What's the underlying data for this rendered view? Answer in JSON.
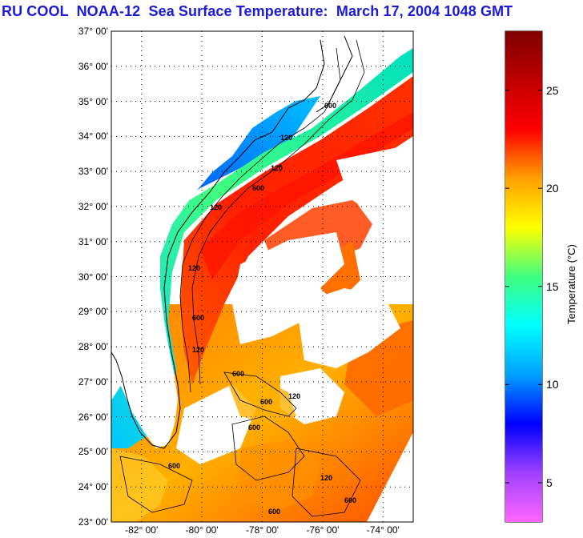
{
  "title": "RU COOL  NOAA-12  Sea Surface Temperature:  March 17, 2004 1048 GMT",
  "lat_labels": [
    "37° 00'",
    "36° 00'",
    "35° 00'",
    "34° 00'",
    "33° 00'",
    "32° 00'",
    "31° 00'",
    "30° 00'",
    "29° 00'",
    "28° 00'",
    "27° 00'",
    "26° 00'",
    "25° 00'",
    "24° 00'",
    "23° 00'"
  ],
  "lon_labels": [
    "-82° 00'",
    "-80° 00'",
    "-78° 00'",
    "-76° 00'",
    "-74° 00'"
  ],
  "colorbar": {
    "label": "Temperature (°C)",
    "ticks": [
      "25",
      "20",
      "15",
      "10",
      "5"
    ],
    "range": [
      3,
      28
    ],
    "colors": [
      "#ff66ff",
      "#a040ff",
      "#0000ff",
      "#00a0ff",
      "#00ffff",
      "#40ff80",
      "#ffff00",
      "#ffa000",
      "#ff0000",
      "#c00000",
      "#800000"
    ]
  },
  "isobath_labels": [
    "600",
    "120",
    "120",
    "600",
    "120",
    "120",
    "600",
    "120",
    "600",
    "600",
    "120",
    "600",
    "120",
    "600",
    "600",
    "600"
  ],
  "chart_data": {
    "type": "heatmap",
    "title": "RU COOL  NOAA-12  Sea Surface Temperature:  March 17, 2004 1048 GMT",
    "xlabel": "",
    "ylabel": "",
    "xlim": [
      -83,
      -73
    ],
    "ylim": [
      23,
      37
    ],
    "x_ticks": [
      -82,
      -80,
      -78,
      -76,
      -74
    ],
    "y_ticks": [
      23,
      24,
      25,
      26,
      27,
      28,
      29,
      30,
      31,
      32,
      33,
      34,
      35,
      36,
      37
    ],
    "colorbar_label": "Temperature (°C)",
    "colorbar_range": [
      3,
      28
    ],
    "colorbar_ticks": [
      5,
      10,
      15,
      20,
      25
    ],
    "grid": true
  }
}
